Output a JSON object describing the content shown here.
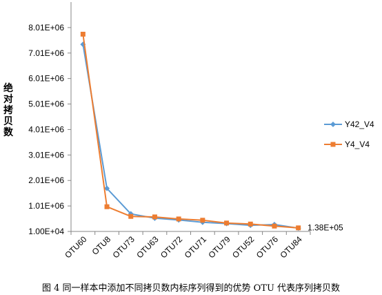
{
  "chart_data": {
    "type": "line",
    "ylabel": "绝对拷贝数",
    "categories": [
      "OTU60",
      "OTU8",
      "OTU73",
      "OTU63",
      "OTU72",
      "OTU71",
      "OTU79",
      "OTU52",
      "OTU76",
      "OTU84"
    ],
    "y_ticks": [
      "1.00E+04",
      "1.01E+06",
      "2.01E+06",
      "3.01E+06",
      "4.01E+06",
      "5.01E+06",
      "6.01E+06",
      "7.01E+06",
      "8.01E+06"
    ],
    "ylim": [
      10000,
      9010000
    ],
    "series": [
      {
        "name": "Y42_V4",
        "color": "#5b9bd5",
        "marker": "diamond",
        "values": [
          7350000,
          1700000,
          700000,
          530000,
          460000,
          370000,
          320000,
          250000,
          280000,
          138000
        ]
      },
      {
        "name": "Y4_V4",
        "color": "#ed7d31",
        "marker": "square",
        "values": [
          7750000,
          980000,
          600000,
          580000,
          500000,
          450000,
          340000,
          300000,
          220000,
          150000
        ]
      }
    ],
    "annotation": "1.38E+05",
    "legend_position": "right",
    "grid": false
  },
  "caption": "图 4 同一样本中添加不同拷贝数内标序列得到的优势 OTU 代表序列拷贝数"
}
